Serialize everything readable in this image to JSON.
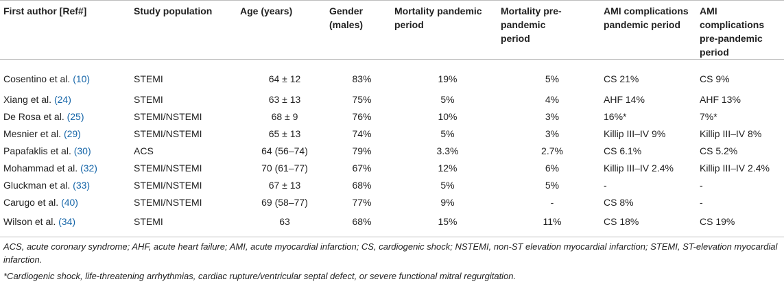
{
  "table": {
    "headers": [
      "First author [Ref#]",
      "Study population",
      "Age (years)",
      "Gender (males)",
      "Mortality pandemic period",
      "Mortality pre-pandemic period",
      "AMI complications pandemic period",
      "AMI complications pre-pandemic period"
    ],
    "rows": [
      {
        "author": "Cosentino et al.",
        "ref": "(10)",
        "population": "STEMI",
        "age": "64 ± 12",
        "gender": "83%",
        "mort_pandemic": "19%",
        "mort_pre": "5%",
        "comp_pandemic": "CS 21%",
        "comp_pre": "CS 9%"
      },
      {
        "author": "Xiang et al.",
        "ref": "(24)",
        "population": "STEMI",
        "age": "63 ± 13",
        "gender": "75%",
        "mort_pandemic": "5%",
        "mort_pre": "4%",
        "comp_pandemic": "AHF 14%",
        "comp_pre": "AHF 13%"
      },
      {
        "author": "De Rosa et al.",
        "ref": "(25)",
        "population": "STEMI/NSTEMI",
        "age": "68 ± 9",
        "gender": "76%",
        "mort_pandemic": "10%",
        "mort_pre": "3%",
        "comp_pandemic": "16%*",
        "comp_pre": "7%*"
      },
      {
        "author": "Mesnier et al.",
        "ref": "(29)",
        "population": "STEMI/NSTEMI",
        "age": "65 ± 13",
        "gender": "74%",
        "mort_pandemic": "5%",
        "mort_pre": "3%",
        "comp_pandemic": "Killip III–IV 9%",
        "comp_pre": "Killip III–IV 8%"
      },
      {
        "author": "Papafaklis et al.",
        "ref": "(30)",
        "population": "ACS",
        "age": "64 (56–74)",
        "gender": "79%",
        "mort_pandemic": "3.3%",
        "mort_pre": "2.7%",
        "comp_pandemic": "CS 6.1%",
        "comp_pre": "CS 5.2%"
      },
      {
        "author": "Mohammad et al.",
        "ref": "(32)",
        "population": "STEMI/NSTEMI",
        "age": "70 (61–77)",
        "gender": "67%",
        "mort_pandemic": "12%",
        "mort_pre": "6%",
        "comp_pandemic": "Killip III–IV 2.4%",
        "comp_pre": "Killip III–IV 2.4%"
      },
      {
        "author": "Gluckman et al.",
        "ref": "(33)",
        "population": "STEMI/NSTEMI",
        "age": "67 ± 13",
        "gender": "68%",
        "mort_pandemic": "5%",
        "mort_pre": "5%",
        "comp_pandemic": "-",
        "comp_pre": "-"
      },
      {
        "author": "Carugo et al.",
        "ref": "(40)",
        "population": "STEMI/NSTEMI",
        "age": "69 (58–77)",
        "gender": "77%",
        "mort_pandemic": "9%",
        "mort_pre": "-",
        "comp_pandemic": "CS 8%",
        "comp_pre": "-"
      },
      {
        "author": "Wilson et al.",
        "ref": "(34)",
        "population": "STEMI",
        "age": "63",
        "gender": "68%",
        "mort_pandemic": "15%",
        "mort_pre": "11%",
        "comp_pandemic": "CS 18%",
        "comp_pre": "CS 19%"
      }
    ]
  },
  "footnotes": {
    "abbreviations": "ACS, acute coronary syndrome; AHF, acute heart failure; AMI, acute myocardial infarction; CS, cardiogenic shock; NSTEMI, non-ST elevation myocardial infarction; STEMI, ST-elevation myocardial infarction.",
    "asterisk": "*Cardiogenic shock, life-threatening arrhythmias, cardiac rupture/ventricular septal defect, or severe functional mitral regurgitation."
  },
  "colors": {
    "link": "#1565a8",
    "rule": "#bdbdbd",
    "text": "#222222"
  }
}
